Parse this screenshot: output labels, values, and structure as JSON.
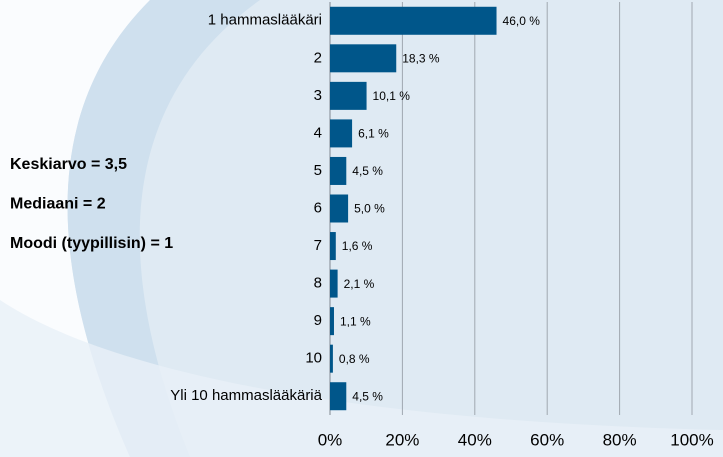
{
  "chart_data": {
    "type": "bar",
    "orientation": "horizontal",
    "categories": [
      "1 hammaslääkäri",
      "2",
      "3",
      "4",
      "5",
      "6",
      "7",
      "8",
      "9",
      "10",
      "Yli 10 hammaslääkäriä"
    ],
    "values": [
      46.0,
      18.3,
      10.1,
      6.1,
      4.5,
      5.0,
      1.6,
      2.1,
      1.1,
      0.8,
      4.5
    ],
    "value_labels": [
      "46,0 %",
      "18,3 %",
      "10,1 %",
      "6,1 %",
      "4,5 %",
      "5,0 %",
      "1,6 %",
      "2,1 %",
      "1,1 %",
      "0,8 %",
      "4,5 %"
    ],
    "color": "#00568a",
    "xlim": [
      0,
      100
    ],
    "xticks": [
      {
        "value": 0,
        "label": "0%"
      },
      {
        "value": 20,
        "label": "20%"
      },
      {
        "value": 40,
        "label": "40%"
      },
      {
        "value": 60,
        "label": "60%"
      },
      {
        "value": 80,
        "label": "80%"
      },
      {
        "value": 100,
        "label": "100%"
      }
    ],
    "grid": true,
    "annotations": [
      "Keskiarvo = 3,5",
      "Mediaani = 2",
      "Moodi (tyypillisin) = 1"
    ]
  }
}
